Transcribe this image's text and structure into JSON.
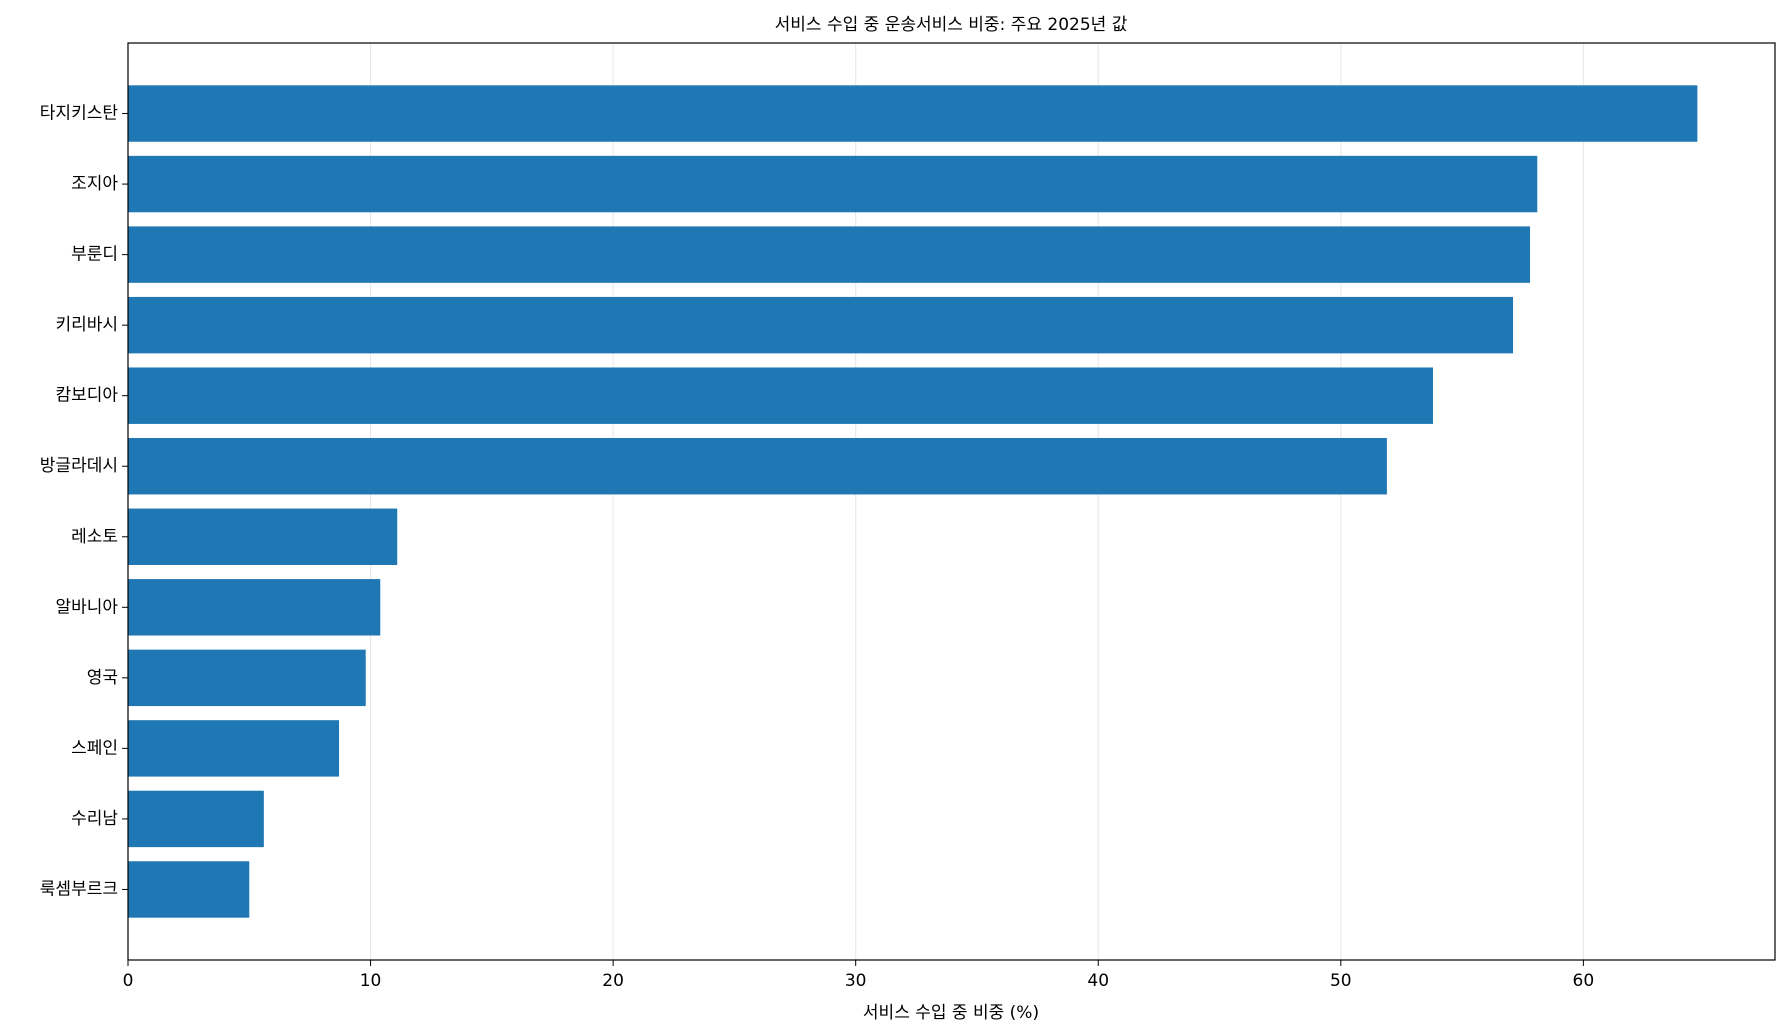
{
  "chart_data": {
    "type": "barh",
    "title": "서비스 수입 중 운송서비스 비중: 주요 2025년 값",
    "x_label": "서비스 수입 중 비중 (%)",
    "categories": [
      "타지키스탄",
      "조지아",
      "부룬디",
      "키리바시",
      "캄보디아",
      "방글라데시",
      "레소토",
      "알바니아",
      "영국",
      "스페인",
      "수리남",
      "룩셈부르크"
    ],
    "values": [
      64.7,
      58.1,
      57.8,
      57.1,
      53.8,
      51.9,
      11.1,
      10.4,
      9.8,
      8.7,
      5.6,
      5.0
    ],
    "color": "#1f77b4",
    "xlim": [
      0,
      67.9
    ],
    "xticks": [
      0,
      10,
      20,
      30,
      40,
      50,
      60
    ],
    "grid": true
  }
}
